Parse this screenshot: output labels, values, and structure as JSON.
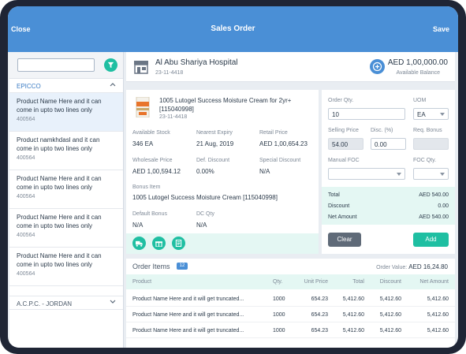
{
  "header": {
    "close_label": "Close",
    "title": "Sales Order",
    "save_label": "Save"
  },
  "sidebar": {
    "search": {
      "value": "",
      "placeholder": ""
    },
    "groups": [
      {
        "name": "EPICCO",
        "expanded": true
      },
      {
        "name": "A.C.P.C. - JORDAN",
        "expanded": false
      }
    ],
    "items": [
      {
        "name": "Product Name Here and it can come in upto two lines only",
        "code": "400564"
      },
      {
        "name": "Product namkhdasl and it can come in upto two lines only",
        "code": "400564"
      },
      {
        "name": "Product Name Here and it can come in upto two lines only",
        "code": "400564"
      },
      {
        "name": "Product Name Here and it can come in upto two lines only",
        "code": "400564"
      },
      {
        "name": "Product Name Here and it can come in upto two lines only",
        "code": "400564"
      }
    ]
  },
  "customer": {
    "name": "Al Abu Shariya Hospital",
    "date": "23-11-4418",
    "balance": "AED 1,00,000.00",
    "balance_label": "Available Balance"
  },
  "product": {
    "title": "1005 Lutogel Success Moisture Cream for 2yr+ [115040998]",
    "date": "23-11-4418",
    "available_stock_label": "Available Stock",
    "available_stock": "346 EA",
    "nearest_expiry_label": "Nearest Expiry",
    "nearest_expiry": "21 Aug, 2019",
    "retail_price_label": "Retail Price",
    "retail_price": "AED 1,00,654.23",
    "wholesale_price_label": "Wholesale Price",
    "wholesale_price": "AED 1,00,594.12",
    "def_discount_label": "Def. Discount",
    "def_discount": "0.00%",
    "special_discount_label": "Special Discount",
    "special_discount": "N/A",
    "bonus_item_label": "Bonus Item",
    "bonus_item": "1005 Lutogel Success Moisture Cream [115040998]",
    "default_bonus_label": "Default Bonus",
    "default_bonus": "N/A",
    "dc_qty_label": "DC Qty",
    "dc_qty": "N/A"
  },
  "form": {
    "order_qty_label": "Order Qty.",
    "order_qty": "10",
    "uom_label": "UOM",
    "uom": "EA",
    "selling_price_label": "Selling Price",
    "selling_price": "54.00",
    "disc_label": "Disc. (%)",
    "disc": "0.00",
    "req_bonus_label": "Req. Bonus",
    "req_bonus": "",
    "manual_foc_label": "Manual FOC",
    "manual_foc": "",
    "foc_qty_label": "FOC Qty.",
    "foc_qty": "",
    "total_label": "Total",
    "total": "AED 540.00",
    "discount_label": "Discount",
    "discount": "0.00",
    "net_amount_label": "Net Amount",
    "net_amount": "AED 540.00",
    "clear_label": "Clear",
    "add_label": "Add"
  },
  "orders": {
    "title": "Order Items",
    "count": "12",
    "order_value_label": "Order Value:",
    "order_value": "AED 16,24.80",
    "columns": [
      "Product",
      "Qty.",
      "Unit Price",
      "Total",
      "Discount",
      "Net Amount"
    ],
    "rows": [
      [
        "Product Name Here and it will get truncated...",
        "1000",
        "654.23",
        "5,412.60",
        "5,412.60",
        "5,412.60"
      ],
      [
        "Product Name Here and it will get truncated...",
        "1000",
        "654.23",
        "5,412.60",
        "5,412.60",
        "5,412.60"
      ],
      [
        "Product Name Here and it will get truncated...",
        "1000",
        "654.23",
        "5,412.60",
        "5,412.60",
        "5,412.60"
      ]
    ]
  },
  "colors": {
    "header": "#4a8fd6",
    "accent": "#1fbfa2",
    "device": "#1f2535"
  },
  "icons": [
    "filter-icon",
    "store-icon",
    "balance-icon",
    "product-image",
    "truck-icon",
    "gift-icon",
    "document-icon",
    "chevron-up-icon",
    "chevron-down-icon"
  ]
}
